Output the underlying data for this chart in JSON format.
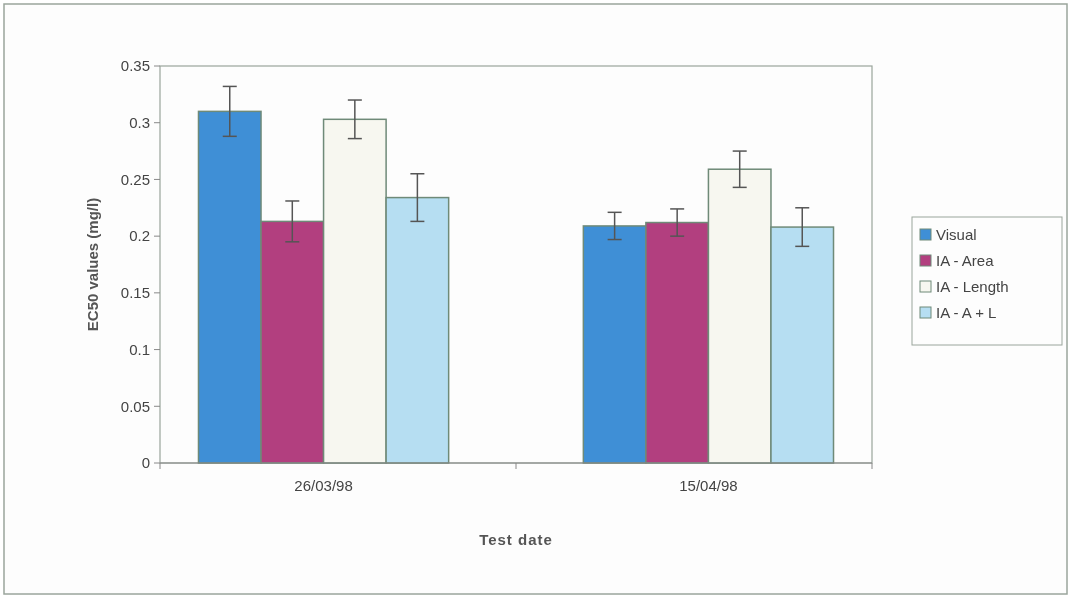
{
  "chart_data": {
    "type": "bar",
    "xlabel": "Test date",
    "ylabel": "EC50 values (mg/l)",
    "categories": [
      "26/03/98",
      "15/04/98"
    ],
    "series": [
      {
        "name": "Visual",
        "color": "#3f8fd6",
        "values": [
          0.31,
          0.209
        ],
        "errors": [
          0.022,
          0.012
        ]
      },
      {
        "name": "IA - Area",
        "color": "#b23f7f",
        "values": [
          0.213,
          0.212
        ],
        "errors": [
          0.018,
          0.012
        ]
      },
      {
        "name": "IA - Length",
        "color": "#f7f7f0",
        "values": [
          0.303,
          0.259
        ],
        "errors": [
          0.017,
          0.016
        ]
      },
      {
        "name": "IA - A + L",
        "color": "#b6def2",
        "values": [
          0.234,
          0.208
        ],
        "errors": [
          0.021,
          0.017
        ]
      }
    ],
    "ylim": [
      0,
      0.35
    ],
    "yticks": [
      0,
      0.05,
      0.1,
      0.15,
      0.2,
      0.25,
      0.3,
      0.35
    ],
    "grid": false,
    "legend": "right"
  }
}
